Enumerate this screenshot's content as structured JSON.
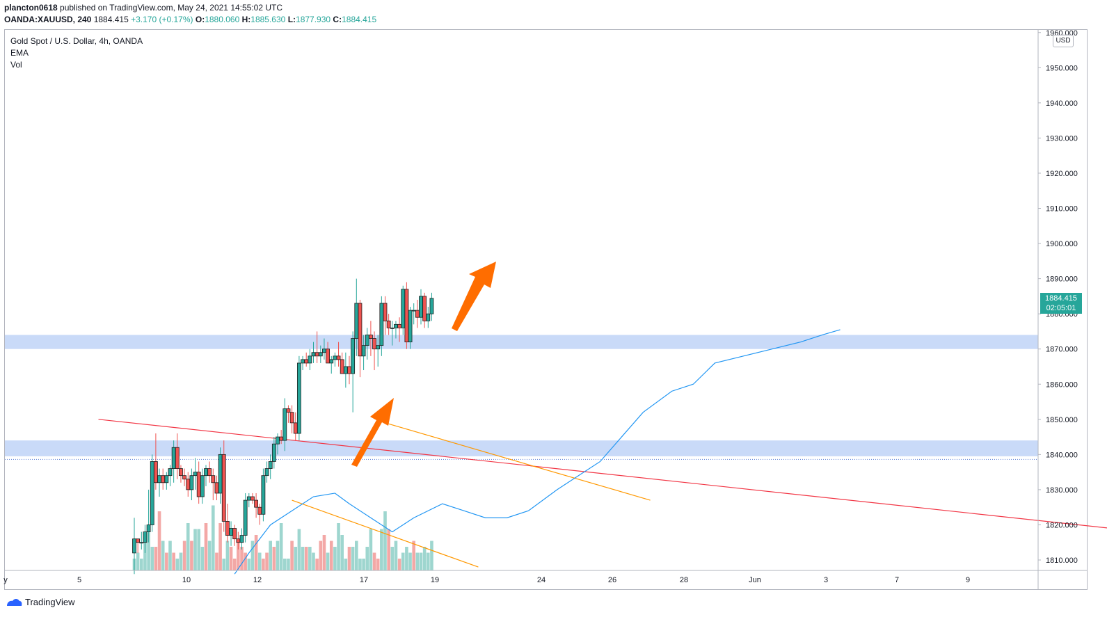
{
  "header": {
    "publisher": "plancton0618",
    "published_text": "published on TradingView.com, May 24, 2021 14:55:02 UTC",
    "symbol": "OANDA:XAUUSD, 240",
    "last": "1884.415",
    "change": "+3.170 (+0.17%)",
    "o_label": "O:",
    "o_val": "1880.060",
    "h_label": "H:",
    "h_val": "1885.630",
    "l_label": "L:",
    "l_val": "1877.930",
    "c_label": "C:",
    "c_val": "1884.415"
  },
  "legend": {
    "title": "Gold Spot / U.S. Dollar, 4h, OANDA",
    "ema": "EMA",
    "vol": "Vol"
  },
  "axis": {
    "currency": "USD",
    "price_tag": "1884.415",
    "countdown": "02:05:01"
  },
  "footer": {
    "brand": "TradingView"
  },
  "colors": {
    "up": "#26a69a",
    "down": "#ef5350",
    "up_vol": "#9ed6cf",
    "down_vol": "#f3a8a6",
    "ema": "#2196f3",
    "zone": "#b7cef5",
    "trend": "#f23645",
    "channel": "#ff9800",
    "arrow": "#ff6d00"
  },
  "chart_data": {
    "type": "candlestick",
    "title": "Gold Spot / U.S. Dollar, 4h, OANDA",
    "y_axis_ticks": [
      "1960.000",
      "1950.000",
      "1940.000",
      "1930.000",
      "1920.000",
      "1910.000",
      "1900.000",
      "1890.000",
      "1880.000",
      "1870.000",
      "1860.000",
      "1850.000",
      "1840.000",
      "1830.000",
      "1820.000",
      "1810.000"
    ],
    "y_range": [
      1806,
      1961
    ],
    "x_axis_ticks": [
      "y",
      "5",
      "10",
      "12",
      "17",
      "19",
      "24",
      "26",
      "28",
      "Jun",
      "3",
      "7",
      "9"
    ],
    "candles": [
      [
        1812,
        1822,
        1806,
        1816
      ],
      [
        1816,
        1815,
        1812,
        1815
      ],
      [
        1815,
        1818,
        1813,
        1815
      ],
      [
        1815,
        1820,
        1812,
        1818
      ],
      [
        1818,
        1830,
        1815,
        1820
      ],
      [
        1820,
        1840,
        1818,
        1838
      ],
      [
        1838,
        1846,
        1830,
        1832
      ],
      [
        1832,
        1836,
        1828,
        1834
      ],
      [
        1834,
        1836,
        1830,
        1832
      ],
      [
        1832,
        1835,
        1830,
        1834
      ],
      [
        1834,
        1837,
        1831,
        1836
      ],
      [
        1836,
        1844,
        1832,
        1842
      ],
      [
        1842,
        1846,
        1833,
        1836
      ],
      [
        1836,
        1837,
        1832,
        1834
      ],
      [
        1834,
        1836,
        1831,
        1833
      ],
      [
        1833,
        1835,
        1828,
        1830
      ],
      [
        1830,
        1836,
        1827,
        1834
      ],
      [
        1834,
        1839,
        1830,
        1835
      ],
      [
        1835,
        1838,
        1826,
        1828
      ],
      [
        1828,
        1836,
        1826,
        1834
      ],
      [
        1834,
        1837,
        1831,
        1836
      ],
      [
        1836,
        1838,
        1832,
        1834
      ],
      [
        1834,
        1836,
        1827,
        1832
      ],
      [
        1832,
        1834,
        1827,
        1829
      ],
      [
        1829,
        1842,
        1826,
        1840
      ],
      [
        1840,
        1844,
        1818,
        1821
      ],
      [
        1821,
        1826,
        1815,
        1817
      ],
      [
        1817,
        1821,
        1814,
        1819
      ],
      [
        1819,
        1820,
        1814,
        1816
      ],
      [
        1816,
        1818,
        1813,
        1815
      ],
      [
        1815,
        1819,
        1813,
        1817
      ],
      [
        1817,
        1829,
        1815,
        1827
      ],
      [
        1827,
        1829,
        1825,
        1828
      ],
      [
        1828,
        1829,
        1826,
        1827
      ],
      [
        1827,
        1829,
        1822,
        1825
      ],
      [
        1825,
        1826,
        1820,
        1823
      ],
      [
        1823,
        1836,
        1821,
        1834
      ],
      [
        1834,
        1838,
        1832,
        1836
      ],
      [
        1836,
        1840,
        1833,
        1838
      ],
      [
        1838,
        1845,
        1836,
        1843
      ],
      [
        1843,
        1846,
        1840,
        1845
      ],
      [
        1845,
        1847,
        1843,
        1844
      ],
      [
        1844,
        1856,
        1841,
        1853
      ],
      [
        1853,
        1854,
        1849,
        1852
      ],
      [
        1852,
        1854,
        1846,
        1849
      ],
      [
        1849,
        1852,
        1844,
        1846
      ],
      [
        1846,
        1868,
        1844,
        1866
      ],
      [
        1866,
        1868,
        1864,
        1867
      ],
      [
        1867,
        1869,
        1865,
        1866
      ],
      [
        1866,
        1870,
        1864,
        1868
      ],
      [
        1868,
        1872,
        1866,
        1869
      ],
      [
        1869,
        1875,
        1866,
        1868
      ],
      [
        1868,
        1871,
        1866,
        1869
      ],
      [
        1869,
        1873,
        1867,
        1870
      ],
      [
        1870,
        1872,
        1866,
        1866
      ],
      [
        1866,
        1868,
        1863,
        1867
      ],
      [
        1867,
        1869,
        1865,
        1868
      ],
      [
        1868,
        1872,
        1865,
        1867
      ],
      [
        1867,
        1869,
        1863,
        1863
      ],
      [
        1863,
        1869,
        1859,
        1865
      ],
      [
        1865,
        1868,
        1860,
        1863
      ],
      [
        1863,
        1875,
        1852,
        1873
      ],
      [
        1873,
        1890,
        1868,
        1883
      ],
      [
        1883,
        1884,
        1862,
        1868
      ],
      [
        1868,
        1874,
        1864,
        1871
      ],
      [
        1871,
        1876,
        1867,
        1874
      ],
      [
        1874,
        1878,
        1868,
        1873
      ],
      [
        1873,
        1875,
        1864,
        1870
      ],
      [
        1870,
        1874,
        1865,
        1871
      ],
      [
        1871,
        1885,
        1868,
        1883
      ],
      [
        1883,
        1885,
        1874,
        1878
      ],
      [
        1878,
        1880,
        1874,
        1876
      ],
      [
        1876,
        1878,
        1871,
        1876
      ],
      [
        1876,
        1878,
        1873,
        1877
      ],
      [
        1877,
        1879,
        1872,
        1876
      ],
      [
        1876,
        1888,
        1874,
        1887
      ],
      [
        1887,
        1889,
        1870,
        1872
      ],
      [
        1872,
        1882,
        1870,
        1881
      ],
      [
        1881,
        1883,
        1877,
        1881
      ],
      [
        1881,
        1884,
        1876,
        1879
      ],
      [
        1879,
        1887,
        1877,
        1885
      ],
      [
        1885,
        1886,
        1876,
        1878
      ],
      [
        1878,
        1882,
        1876,
        1880
      ],
      [
        1880,
        1886,
        1878,
        1884.415
      ]
    ],
    "volumes": [
      [
        2,
        0
      ],
      [
        3,
        0
      ],
      [
        2,
        0
      ],
      [
        5,
        0
      ],
      [
        7,
        0
      ],
      [
        4,
        0
      ],
      [
        4,
        1
      ],
      [
        10,
        1
      ],
      [
        5,
        0
      ],
      [
        3,
        1
      ],
      [
        5,
        0
      ],
      [
        3,
        1
      ],
      [
        2,
        0
      ],
      [
        3,
        0
      ],
      [
        5,
        1
      ],
      [
        8,
        0
      ],
      [
        5,
        1
      ],
      [
        7,
        0
      ],
      [
        7,
        0
      ],
      [
        4,
        0
      ],
      [
        8,
        1
      ],
      [
        5,
        0
      ],
      [
        11,
        0
      ],
      [
        3,
        1
      ],
      [
        8,
        1
      ],
      [
        2,
        0
      ],
      [
        5,
        0
      ],
      [
        4,
        1
      ],
      [
        2,
        1
      ],
      [
        5,
        1
      ],
      [
        4,
        1
      ],
      [
        3,
        1
      ],
      [
        2,
        0
      ],
      [
        5,
        0
      ],
      [
        6,
        1
      ],
      [
        3,
        0
      ],
      [
        2,
        1
      ],
      [
        3,
        1
      ],
      [
        5,
        0
      ],
      [
        4,
        1
      ],
      [
        5,
        0
      ],
      [
        8,
        0
      ],
      [
        2,
        0
      ],
      [
        2,
        0
      ],
      [
        5,
        1
      ],
      [
        4,
        0
      ],
      [
        7,
        0
      ],
      [
        4,
        0
      ],
      [
        4,
        1
      ],
      [
        4,
        0
      ],
      [
        3,
        0
      ],
      [
        2,
        1
      ],
      [
        5,
        1
      ],
      [
        6,
        1
      ],
      [
        3,
        0
      ],
      [
        5,
        1
      ],
      [
        4,
        0
      ],
      [
        8,
        0
      ],
      [
        6,
        0
      ],
      [
        2,
        0
      ],
      [
        4,
        1
      ],
      [
        4,
        0
      ],
      [
        5,
        0
      ],
      [
        2,
        0
      ],
      [
        2,
        0
      ],
      [
        4,
        0
      ],
      [
        7,
        0
      ],
      [
        3,
        1
      ],
      [
        2,
        1
      ],
      [
        7,
        0
      ],
      [
        10,
        0
      ],
      [
        7,
        1
      ],
      [
        4,
        0
      ],
      [
        5,
        0
      ],
      [
        2,
        1
      ],
      [
        3,
        0
      ],
      [
        4,
        0
      ],
      [
        3,
        0
      ],
      [
        5,
        1
      ],
      [
        3,
        0
      ],
      [
        3,
        0
      ],
      [
        4,
        0
      ],
      [
        3,
        0
      ],
      [
        5,
        0
      ]
    ],
    "ema": [
      [
        28,
        1806
      ],
      [
        32,
        1812
      ],
      [
        38,
        1820
      ],
      [
        44,
        1824
      ],
      [
        50,
        1828
      ],
      [
        56,
        1829
      ],
      [
        60,
        1826
      ],
      [
        66,
        1822
      ],
      [
        72,
        1818
      ],
      [
        78,
        1822
      ],
      [
        86,
        1826
      ],
      [
        92,
        1824
      ],
      [
        98,
        1822
      ],
      [
        104,
        1822
      ],
      [
        110,
        1824
      ],
      [
        118,
        1830
      ],
      [
        124,
        1834
      ],
      [
        130,
        1838
      ],
      [
        136,
        1845
      ],
      [
        142,
        1852
      ],
      [
        150,
        1858
      ],
      [
        156,
        1860
      ],
      [
        162,
        1866
      ],
      [
        170,
        1868
      ],
      [
        178,
        1870
      ],
      [
        186,
        1872
      ],
      [
        192,
        1874
      ],
      [
        197,
        1875.5
      ]
    ],
    "zones": [
      [
        1870,
        1874
      ],
      [
        1839.5,
        1844
      ]
    ],
    "trendline": [
      [
        -10,
        1850
      ],
      [
        300,
        1816
      ]
    ],
    "channel_lines": [
      [
        [
          70,
          1849
        ],
        [
          144,
          1827
        ]
      ],
      [
        [
          44,
          1827
        ],
        [
          96,
          1808
        ]
      ]
    ]
  }
}
